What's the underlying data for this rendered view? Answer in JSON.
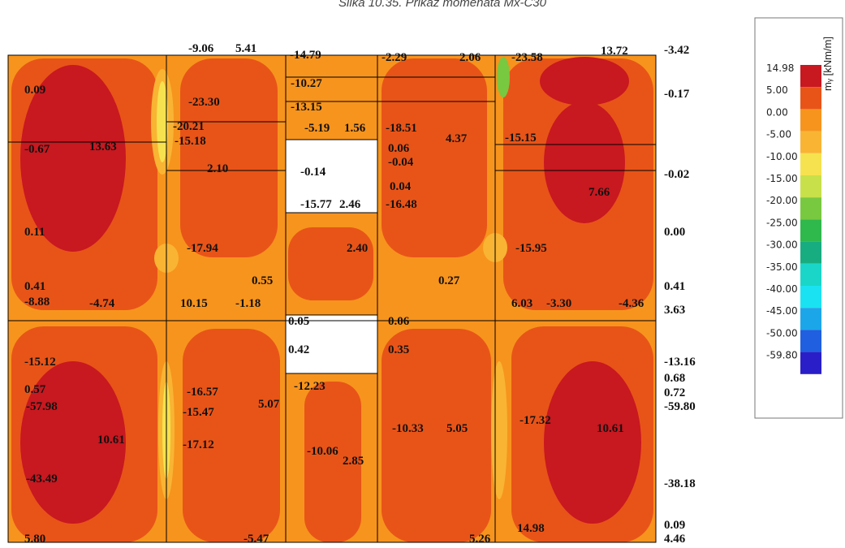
{
  "title": "Slika 10.35. Prikaz momenata Mx-C30",
  "legend": {
    "unit": "mᵧ [kNm/m]",
    "levels": [
      {
        "label": "14.98",
        "color": "#c81820"
      },
      {
        "label": "5.00",
        "color": "#e85418"
      },
      {
        "label": "0.00",
        "color": "#f7941d"
      },
      {
        "label": "-5.00",
        "color": "#f9b434"
      },
      {
        "label": "-10.00",
        "color": "#f6e24e"
      },
      {
        "label": "-15.00",
        "color": "#c8e04a"
      },
      {
        "label": "-20.00",
        "color": "#78c840"
      },
      {
        "label": "-25.00",
        "color": "#2fb84c"
      },
      {
        "label": "-30.00",
        "color": "#18ad80"
      },
      {
        "label": "-35.00",
        "color": "#1ad6c8"
      },
      {
        "label": "-40.00",
        "color": "#1ae2f2"
      },
      {
        "label": "-45.00",
        "color": "#1ca6ea"
      },
      {
        "label": "-50.00",
        "color": "#1f5fe0"
      },
      {
        "label": "-59.80",
        "color": "#2a1ec8"
      }
    ]
  },
  "labels": [
    "-9.06",
    "5.41",
    "-14.79",
    "-2.29",
    "2.06",
    "-23.58",
    "13.72",
    "-3.42",
    "0.09",
    "-23.30",
    "-10.27",
    "-13.15",
    "-0.17",
    "-20.21",
    "-15.18",
    "-5.19",
    "1.56",
    "-18.51",
    "4.37",
    "-15.15",
    "-0.67",
    "13.63",
    "0.06",
    "-0.04",
    "2.10",
    "-0.14",
    "-0.02",
    "0.04",
    "7.66",
    "-15.77",
    "2.46",
    "-16.48",
    "0.11",
    "0.00",
    "-17.94",
    "2.40",
    "-15.95",
    "0.55",
    "0.27",
    "0.41",
    "0.41",
    "-8.88",
    "-4.74",
    "10.15",
    "-1.18",
    "6.03",
    "-3.30",
    "-4.36",
    "3.63",
    "0.05",
    "0.06",
    "0.42",
    "0.35",
    "-15.12",
    "-13.16",
    "-12.23",
    "0.57",
    "0.68",
    "-16.57",
    "5.07",
    "-15.47",
    "0.72",
    "-57.98",
    "-59.80",
    "10.61",
    "-10.33",
    "5.05",
    "-17.32",
    "10.61",
    "-17.12",
    "-10.06",
    "2.85",
    "-43.49",
    "-38.18",
    "14.98",
    "0.09",
    "4.46",
    "-5.47",
    "5.26",
    "5.80"
  ]
}
